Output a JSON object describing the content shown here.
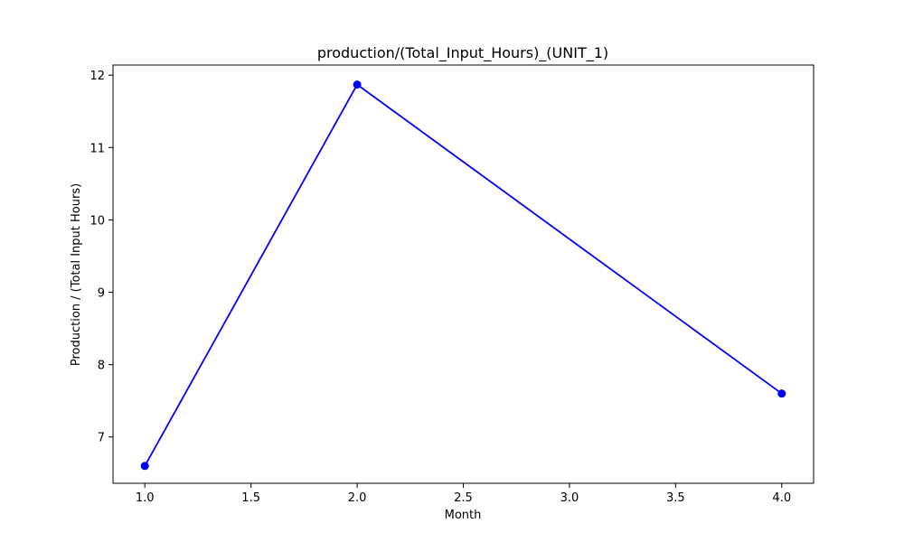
{
  "chart_data": {
    "type": "line",
    "title": "production/(Total_Input_Hours)_(UNIT_1)",
    "xlabel": "Month",
    "ylabel": "Production / (Total Input Hours)",
    "xlim": [
      0.85,
      4.15
    ],
    "ylim": [
      6.36,
      12.14
    ],
    "x_ticks": [
      1.0,
      1.5,
      2.0,
      2.5,
      3.0,
      3.5,
      4.0
    ],
    "x_tick_labels": [
      "1.0",
      "1.5",
      "2.0",
      "2.5",
      "3.0",
      "3.5",
      "4.0"
    ],
    "y_ticks": [
      7,
      8,
      9,
      10,
      11,
      12
    ],
    "y_tick_labels": [
      "7",
      "8",
      "9",
      "10",
      "11",
      "12"
    ],
    "grid": false,
    "series": [
      {
        "name": "UNIT_1",
        "color": "#0000ff",
        "marker": "circle",
        "x": [
          1.0,
          2.0,
          4.0
        ],
        "values": [
          6.6,
          11.87,
          7.6
        ]
      }
    ]
  }
}
